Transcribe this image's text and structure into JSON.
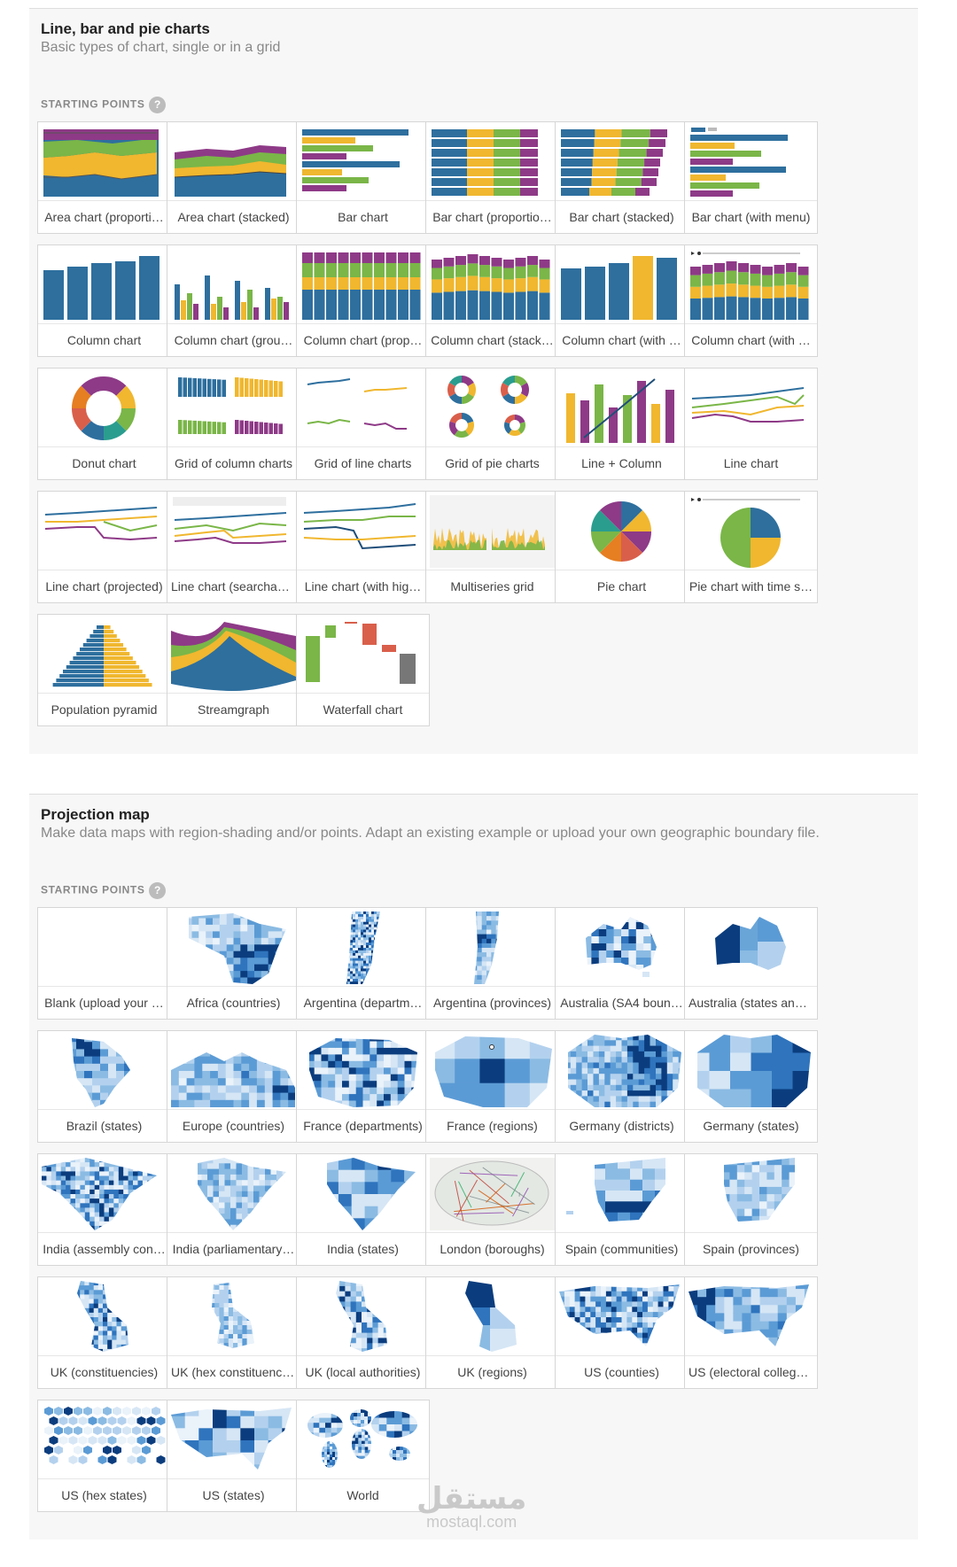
{
  "section1": {
    "title": "Line, bar and pie charts",
    "subtitle": "Basic types of chart, single or in a grid",
    "starting_points": "STARTING POINTS",
    "help": "?",
    "cards": [
      {
        "label": "Area chart (proporti…",
        "icon": "area-proportional"
      },
      {
        "label": "Area chart (stacked)",
        "icon": "area-stacked"
      },
      {
        "label": "Bar chart",
        "icon": "bar"
      },
      {
        "label": "Bar chart (proportio…",
        "icon": "bar-proportional"
      },
      {
        "label": "Bar chart (stacked)",
        "icon": "bar-stacked"
      },
      {
        "label": "Bar chart (with menu)",
        "icon": "bar-menu"
      },
      {
        "label": "Column chart",
        "icon": "column"
      },
      {
        "label": "Column chart (grou…",
        "icon": "column-grouped"
      },
      {
        "label": "Column chart (prop…",
        "icon": "column-proportional"
      },
      {
        "label": "Column chart (stack…",
        "icon": "column-stacked"
      },
      {
        "label": "Column chart (with …",
        "icon": "column-highlight"
      },
      {
        "label": "Column chart (with …",
        "icon": "column-time"
      },
      {
        "label": "Donut chart",
        "icon": "donut"
      },
      {
        "label": "Grid of column charts",
        "icon": "grid-columns"
      },
      {
        "label": "Grid of line charts",
        "icon": "grid-lines"
      },
      {
        "label": "Grid of pie charts",
        "icon": "grid-pies"
      },
      {
        "label": "Line + Column",
        "icon": "line-column"
      },
      {
        "label": "Line chart",
        "icon": "line"
      },
      {
        "label": "Line chart (projected)",
        "icon": "line-projected"
      },
      {
        "label": "Line chart (searchab…",
        "icon": "line-searchable"
      },
      {
        "label": "Line chart (with hig…",
        "icon": "line-highlight"
      },
      {
        "label": "Multiseries grid",
        "icon": "multiseries"
      },
      {
        "label": "Pie chart",
        "icon": "pie"
      },
      {
        "label": "Pie chart with time s…",
        "icon": "pie-time"
      },
      {
        "label": "Population pyramid",
        "icon": "pyramid"
      },
      {
        "label": "Streamgraph",
        "icon": "streamgraph"
      },
      {
        "label": "Waterfall chart",
        "icon": "waterfall"
      }
    ]
  },
  "section2": {
    "title": "Projection map",
    "subtitle": "Make data maps with region-shading and/or points. Adapt an existing example or upload your own geographic boundary file.",
    "starting_points": "STARTING POINTS",
    "help": "?",
    "cards": [
      {
        "label": "Blank (upload your …",
        "icon": "map-blank"
      },
      {
        "label": "Africa (countries)",
        "icon": "map-africa"
      },
      {
        "label": "Argentina (departm…",
        "icon": "map-argentina-departments"
      },
      {
        "label": "Argentina (provinces)",
        "icon": "map-argentina-provinces"
      },
      {
        "label": "Australia (SA4 boun…",
        "icon": "map-australia-sa4"
      },
      {
        "label": "Australia (states and…",
        "icon": "map-australia-states"
      },
      {
        "label": "Brazil (states)",
        "icon": "map-brazil"
      },
      {
        "label": "Europe (countries)",
        "icon": "map-europe"
      },
      {
        "label": "France (departments)",
        "icon": "map-france-departments"
      },
      {
        "label": "France (regions)",
        "icon": "map-france-regions"
      },
      {
        "label": "Germany (districts)",
        "icon": "map-germany-districts"
      },
      {
        "label": "Germany (states)",
        "icon": "map-germany-states"
      },
      {
        "label": "India (assembly con…",
        "icon": "map-india-assembly"
      },
      {
        "label": "India (parliamentary…",
        "icon": "map-india-parliamentary"
      },
      {
        "label": "India (states)",
        "icon": "map-india-states"
      },
      {
        "label": "London (boroughs)",
        "icon": "map-london"
      },
      {
        "label": "Spain (communities)",
        "icon": "map-spain-communities"
      },
      {
        "label": "Spain (provinces)",
        "icon": "map-spain-provinces"
      },
      {
        "label": "UK (constituencies)",
        "icon": "map-uk-constituencies"
      },
      {
        "label": "UK (hex constituenci…",
        "icon": "map-uk-hex"
      },
      {
        "label": "UK (local authorities)",
        "icon": "map-uk-local"
      },
      {
        "label": "UK (regions)",
        "icon": "map-uk-regions"
      },
      {
        "label": "US (counties)",
        "icon": "map-us-counties"
      },
      {
        "label": "US (electoral college…",
        "icon": "map-us-electoral"
      },
      {
        "label": "US (hex states)",
        "icon": "map-us-hex"
      },
      {
        "label": "US (states)",
        "icon": "map-us-states"
      },
      {
        "label": "World",
        "icon": "map-world"
      }
    ]
  },
  "colors": {
    "blue": "#2e6f9e",
    "yellow": "#f0b72f",
    "green": "#7ab648",
    "purple": "#8e3a87",
    "red": "#d95f4b",
    "gray": "#777777",
    "map_light": "#d6e6f5",
    "map_mid": "#6aa5d8",
    "map_dark": "#0b3d7e"
  },
  "watermark": {
    "arabic": "مستقل",
    "latin": "mostaql.com"
  }
}
